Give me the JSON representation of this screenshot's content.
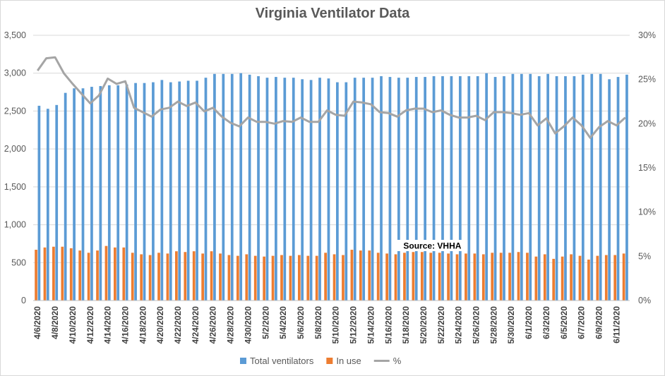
{
  "chart_data": {
    "type": "bar",
    "title": "Virginia Ventilator Data",
    "categories": [
      "4/6/2020",
      "4/7/2020",
      "4/8/2020",
      "4/9/2020",
      "4/10/2020",
      "4/11/2020",
      "4/12/2020",
      "4/13/2020",
      "4/14/2020",
      "4/15/2020",
      "4/16/2020",
      "4/17/2020",
      "4/18/2020",
      "4/19/2020",
      "4/20/2020",
      "4/21/2020",
      "4/22/2020",
      "4/23/2020",
      "4/24/2020",
      "4/25/2020",
      "4/26/2020",
      "4/27/2020",
      "4/28/2020",
      "4/29/2020",
      "4/30/2020",
      "5/1/2020",
      "5/2/2020",
      "5/3/2020",
      "5/4/2020",
      "5/5/2020",
      "5/6/2020",
      "5/7/2020",
      "5/8/2020",
      "5/9/2020",
      "5/10/2020",
      "5/11/2020",
      "5/12/2020",
      "5/13/2020",
      "5/14/2020",
      "5/15/2020",
      "5/16/2020",
      "5/17/2020",
      "5/18/2020",
      "5/19/2020",
      "5/20/2020",
      "5/21/2020",
      "5/22/2020",
      "5/23/2020",
      "5/24/2020",
      "5/25/2020",
      "5/26/2020",
      "5/27/2020",
      "5/28/2020",
      "5/29/2020",
      "5/30/2020",
      "5/31/2020",
      "6/1/2020",
      "6/2/2020",
      "6/3/2020",
      "6/4/2020",
      "6/5/2020",
      "6/6/2020",
      "6/7/2020",
      "6/8/2020",
      "6/9/2020",
      "6/10/2020",
      "6/11/2020",
      "6/12/2020"
    ],
    "tick_labels": [
      "4/6/2020",
      "4/8/2020",
      "4/10/2020",
      "4/12/2020",
      "4/14/2020",
      "4/16/2020",
      "4/18/2020",
      "4/20/2020",
      "4/22/2020",
      "4/24/2020",
      "4/26/2020",
      "4/28/2020",
      "4/30/2020",
      "5/2/2020",
      "5/4/2020",
      "5/6/2020",
      "5/8/2020",
      "5/10/2020",
      "5/12/2020",
      "5/14/2020",
      "5/16/2020",
      "5/18/2020",
      "5/20/2020",
      "5/22/2020",
      "5/24/2020",
      "5/26/2020",
      "5/28/2020",
      "5/30/2020",
      "6/1/2020",
      "6/3/2020",
      "6/5/2020",
      "6/7/2020",
      "6/9/2020",
      "6/11/2020"
    ],
    "series": [
      {
        "name": "Total ventilators",
        "type": "bar",
        "axis": "left",
        "color": "#5b9bd5",
        "values": [
          2570,
          2530,
          2580,
          2740,
          2800,
          2800,
          2820,
          2830,
          2840,
          2840,
          2850,
          2870,
          2870,
          2880,
          2910,
          2880,
          2890,
          2900,
          2900,
          2940,
          2990,
          2990,
          2990,
          3000,
          2980,
          2960,
          2940,
          2950,
          2940,
          2940,
          2920,
          2910,
          2940,
          2930,
          2880,
          2880,
          2940,
          2940,
          2940,
          2960,
          2950,
          2940,
          2940,
          2950,
          2950,
          2960,
          2960,
          2960,
          2960,
          2960,
          2960,
          3000,
          2950,
          2960,
          2990,
          2990,
          2990,
          2960,
          2990,
          2960,
          2960,
          2960,
          2980,
          2990,
          2990,
          2920,
          2950,
          2980
        ]
      },
      {
        "name": "In use",
        "type": "bar",
        "axis": "left",
        "color": "#ed7d31",
        "values": [
          670,
          700,
          710,
          710,
          690,
          660,
          630,
          660,
          720,
          700,
          700,
          630,
          610,
          600,
          630,
          620,
          650,
          640,
          650,
          620,
          650,
          620,
          600,
          590,
          610,
          590,
          580,
          590,
          600,
          590,
          600,
          590,
          590,
          630,
          610,
          600,
          670,
          660,
          660,
          630,
          620,
          610,
          630,
          640,
          640,
          630,
          630,
          620,
          610,
          620,
          620,
          610,
          630,
          630,
          630,
          640,
          630,
          580,
          610,
          550,
          580,
          610,
          590,
          540,
          590,
          600,
          600,
          620
        ]
      },
      {
        "name": "%",
        "type": "line",
        "axis": "right",
        "color": "#a5a5a5",
        "values": [
          26.0,
          27.4,
          27.5,
          25.7,
          24.5,
          23.4,
          22.3,
          23.2,
          25.1,
          24.5,
          24.8,
          21.8,
          21.3,
          20.8,
          21.6,
          21.8,
          22.5,
          22.0,
          22.4,
          21.4,
          21.8,
          20.8,
          20.1,
          19.7,
          20.7,
          20.2,
          20.2,
          20.0,
          20.3,
          20.2,
          20.7,
          20.2,
          20.2,
          21.5,
          21.0,
          20.9,
          22.5,
          22.4,
          22.2,
          21.3,
          21.2,
          20.8,
          21.5,
          21.7,
          21.7,
          21.3,
          21.5,
          21.0,
          20.7,
          20.7,
          20.9,
          20.4,
          21.3,
          21.3,
          21.2,
          21.0,
          21.2,
          19.8,
          20.6,
          18.9,
          19.7,
          20.7,
          19.8,
          18.4,
          19.6,
          20.3,
          19.8,
          20.7
        ]
      }
    ],
    "y_left": {
      "min": 0,
      "max": 3500,
      "step": 500,
      "tick_labels": [
        "0",
        "500",
        "1,000",
        "1,500",
        "2,000",
        "2,500",
        "3,000",
        "3,500"
      ]
    },
    "y_right": {
      "min": 0,
      "max": 30,
      "step": 5,
      "tick_labels": [
        "0%",
        "5%",
        "10%",
        "15%",
        "20%",
        "25%",
        "30%"
      ]
    },
    "grid": true,
    "legend_position": "bottom",
    "annotation": {
      "text": "Source: VHHA",
      "at_category": "5/21/2020"
    }
  }
}
